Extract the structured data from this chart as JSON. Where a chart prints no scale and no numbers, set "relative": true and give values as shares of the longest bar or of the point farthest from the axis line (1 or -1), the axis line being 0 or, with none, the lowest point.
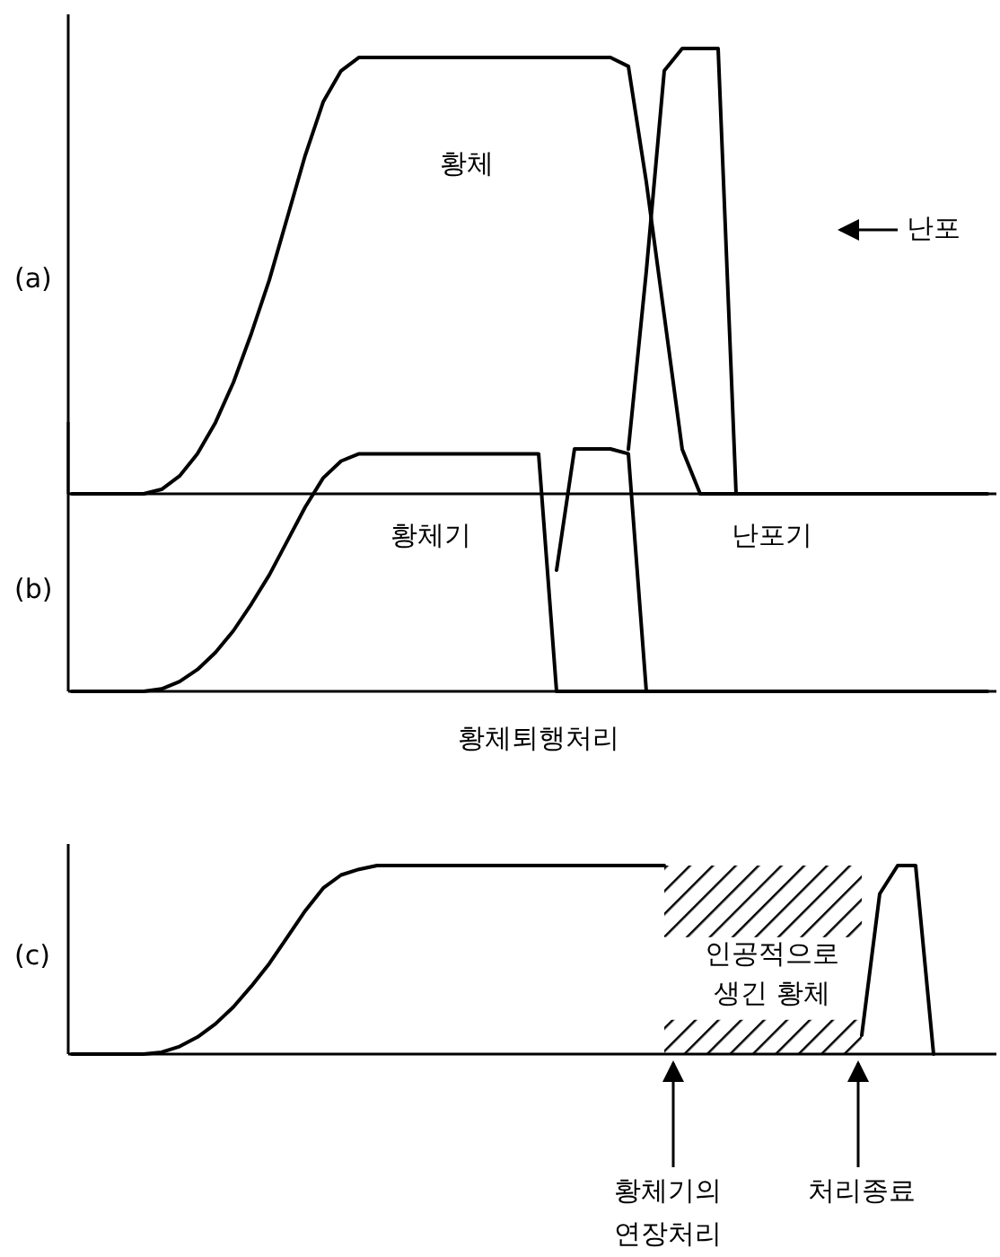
{
  "chart_data": [
    {
      "type": "line",
      "title": "(a)",
      "relative": true,
      "categories": [
        null,
        null,
        null,
        null,
        null,
        null,
        null,
        null,
        null,
        null,
        null,
        null,
        null,
        null,
        null,
        null,
        null,
        null,
        null,
        null,
        null,
        null,
        null,
        null,
        null,
        null,
        null,
        null,
        null,
        null,
        null,
        null,
        null,
        null,
        null,
        null,
        null,
        null,
        null,
        null,
        null,
        null,
        null,
        null,
        null,
        null,
        null,
        null,
        null,
        null,
        null,
        null
      ],
      "series": [
        {
          "color": "#000000",
          "values": [
            0,
            0,
            0,
            0,
            0,
            0.01,
            0.04,
            0.09,
            0.16,
            0.25,
            0.36,
            0.48,
            0.62,
            0.76,
            0.88,
            0.95,
            0.98,
            0.98,
            0.98,
            0.98,
            0.98,
            0.98,
            0.98,
            0.98,
            0.98,
            0.98,
            0.98,
            0.98,
            0.98,
            0.98,
            0.98,
            0.96,
            0.7,
            0.4,
            0.1,
            0,
            0,
            0,
            0,
            0,
            0,
            0,
            0,
            0,
            0,
            0,
            0,
            0,
            0,
            0,
            0,
            0
          ]
        },
        {
          "color": "#000000",
          "values": [
            null,
            null,
            null,
            null,
            null,
            null,
            null,
            null,
            null,
            null,
            null,
            null,
            null,
            null,
            null,
            null,
            null,
            null,
            null,
            null,
            null,
            null,
            null,
            null,
            null,
            null,
            null,
            null,
            null,
            null,
            null,
            0.1,
            0.5,
            0.95,
            1,
            1,
            1,
            0,
            null,
            null,
            null,
            null,
            null,
            null,
            null,
            null,
            null,
            null,
            null,
            null,
            null,
            null
          ]
        }
      ],
      "annotations": [
        "황체",
        "난포",
        "황체기",
        "난포기"
      ]
    },
    {
      "type": "line",
      "title": "(b)",
      "relative": true,
      "categories": [
        null,
        null,
        null,
        null,
        null,
        null,
        null,
        null,
        null,
        null,
        null,
        null,
        null,
        null,
        null,
        null,
        null,
        null,
        null,
        null,
        null,
        null,
        null,
        null,
        null,
        null,
        null,
        null,
        null,
        null,
        null,
        null,
        null,
        null,
        null,
        null,
        null,
        null,
        null,
        null,
        null,
        null,
        null,
        null,
        null,
        null,
        null,
        null,
        null,
        null,
        null,
        null
      ],
      "series": [
        {
          "color": "#000000",
          "values": [
            0,
            0,
            0,
            0,
            0,
            0.01,
            0.04,
            0.09,
            0.16,
            0.25,
            0.36,
            0.48,
            0.62,
            0.76,
            0.88,
            0.95,
            0.98,
            0.98,
            0.98,
            0.98,
            0.98,
            0.98,
            0.98,
            0.98,
            0.98,
            0.98,
            0.98,
            0,
            0,
            0,
            0,
            0,
            0,
            0,
            0,
            0,
            0,
            0,
            0,
            0,
            0,
            0,
            0,
            0,
            0,
            0,
            0,
            0,
            0,
            0,
            0,
            0
          ]
        },
        {
          "color": "#000000",
          "values": [
            null,
            null,
            null,
            null,
            null,
            null,
            null,
            null,
            null,
            null,
            null,
            null,
            null,
            null,
            null,
            null,
            null,
            null,
            null,
            null,
            null,
            null,
            null,
            null,
            null,
            null,
            null,
            0.5,
            1,
            1,
            1,
            0.98,
            0,
            null,
            null,
            null,
            null,
            null,
            null,
            null,
            null,
            null,
            null,
            null,
            null,
            null,
            null,
            null,
            null,
            null,
            null,
            null
          ]
        }
      ],
      "annotations": [
        "황체퇴행처리"
      ]
    },
    {
      "type": "line",
      "title": "(c)",
      "relative": true,
      "categories": [
        null,
        null,
        null,
        null,
        null,
        null,
        null,
        null,
        null,
        null,
        null,
        null,
        null,
        null,
        null,
        null,
        null,
        null,
        null,
        null,
        null,
        null,
        null,
        null,
        null,
        null,
        null,
        null,
        null,
        null,
        null,
        null,
        null,
        null,
        null,
        null,
        null,
        null,
        null,
        null,
        null,
        null,
        null,
        null,
        null,
        null,
        null,
        null,
        null,
        null,
        null,
        null
      ],
      "series": [
        {
          "color": "#000000",
          "values": [
            0,
            0,
            0,
            0,
            0,
            0.01,
            0.04,
            0.09,
            0.16,
            0.25,
            0.36,
            0.48,
            0.62,
            0.76,
            0.88,
            0.95,
            0.98,
            1,
            1,
            1,
            1,
            1,
            1,
            1,
            1,
            1,
            1,
            1,
            1,
            1,
            1,
            1,
            1,
            1,
            null,
            null,
            null,
            null,
            null,
            null,
            null,
            null,
            null,
            null,
            null,
            null,
            null,
            null,
            null,
            null,
            null,
            null
          ]
        },
        {
          "color": "#000000",
          "values": [
            null,
            null,
            null,
            null,
            null,
            null,
            null,
            null,
            null,
            null,
            null,
            null,
            null,
            null,
            null,
            null,
            null,
            null,
            null,
            null,
            null,
            null,
            null,
            null,
            null,
            null,
            null,
            null,
            null,
            null,
            null,
            null,
            null,
            null,
            null,
            null,
            null,
            null,
            null,
            null,
            null,
            null,
            null,
            null,
            0.1,
            0.85,
            1,
            1,
            0,
            null,
            null,
            null
          ]
        }
      ],
      "annotations": [
        "인공적으로 생긴 황체",
        "황체기의 연장처리",
        "처리종료"
      ]
    }
  ]
}
